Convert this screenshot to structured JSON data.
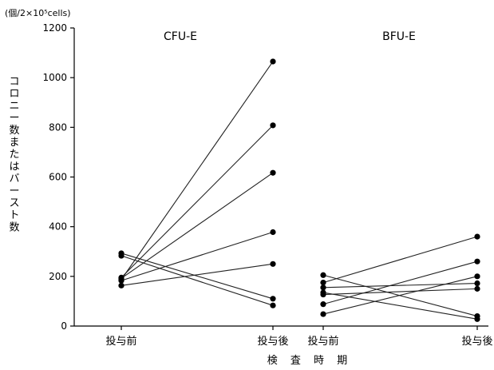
{
  "chart_data": {
    "type": "line",
    "unit_label": "(個/2×10⁵cells)",
    "ylabel": "コロニー数またはバースト数",
    "xlabel": "検 査 時 期",
    "ylim": [
      0,
      1200
    ],
    "yticks": [
      "0",
      "200",
      "400",
      "600",
      "800",
      "1000",
      "1200"
    ],
    "grid": false,
    "panels": [
      {
        "title": "CFU-E",
        "categories": [
          "投与前",
          "投与後"
        ],
        "series": [
          {
            "values": [
              187,
              1065
            ]
          },
          {
            "values": [
              195,
              808
            ]
          },
          {
            "values": [
              192,
              617
            ]
          },
          {
            "values": [
              183,
              378
            ]
          },
          {
            "values": [
              163,
              250
            ]
          },
          {
            "values": [
              293,
              110
            ]
          },
          {
            "values": [
              283,
              83
            ]
          }
        ]
      },
      {
        "title": "BFU-E",
        "categories": [
          "投与前",
          "投与後"
        ],
        "series": [
          {
            "values": [
              175,
              360
            ]
          },
          {
            "values": [
              88,
              260
            ]
          },
          {
            "values": [
              48,
              200
            ]
          },
          {
            "values": [
              155,
              172
            ]
          },
          {
            "values": [
              127,
              150
            ]
          },
          {
            "values": [
              205,
              40
            ]
          },
          {
            "values": [
              135,
              28
            ]
          }
        ]
      }
    ]
  }
}
